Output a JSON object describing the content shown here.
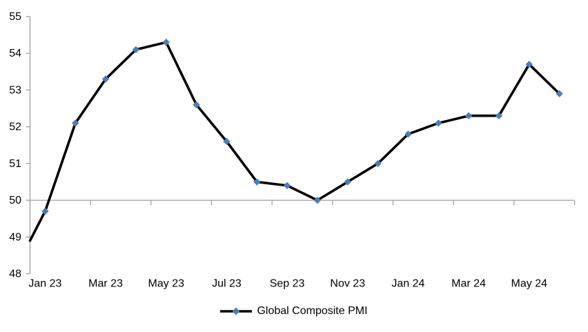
{
  "chart_data": {
    "type": "line",
    "title": "",
    "categories": [
      "Jan 23",
      "Feb 23",
      "Mar 23",
      "Apr 23",
      "May 23",
      "Jun 23",
      "Jul 23",
      "Aug 23",
      "Sep 23",
      "Oct 23",
      "Nov 23",
      "Dec 23",
      "Jan 24",
      "Feb 24",
      "Mar 24",
      "Apr 24",
      "May 24",
      "Jun 24"
    ],
    "series": [
      {
        "name": "Global Composite PMI",
        "values": [
          49.7,
          52.1,
          53.3,
          54.1,
          54.3,
          52.6,
          51.6,
          50.5,
          50.4,
          50.0,
          50.5,
          51.0,
          51.8,
          52.1,
          52.3,
          52.3,
          53.7,
          52.9
        ]
      }
    ],
    "lead_in_value_at_axis": 48.9,
    "x_tick_labels": [
      "Jan 23",
      "Mar 23",
      "May 23",
      "Jul 23",
      "Sep 23",
      "Nov 23",
      "Jan 24",
      "Mar 24",
      "May 24"
    ],
    "x_label_every": 2,
    "y_ticks": [
      48,
      49,
      50,
      51,
      52,
      53,
      54,
      55
    ],
    "ylim": [
      48,
      55
    ],
    "x_axis_cross_value": 50,
    "grid": false,
    "legend": {
      "label": "Global Composite PMI",
      "position": "bottom"
    }
  },
  "colors": {
    "line": "#000000",
    "marker": "#4a7ebb",
    "axis": "#a6a6a6",
    "text": "#000000"
  }
}
